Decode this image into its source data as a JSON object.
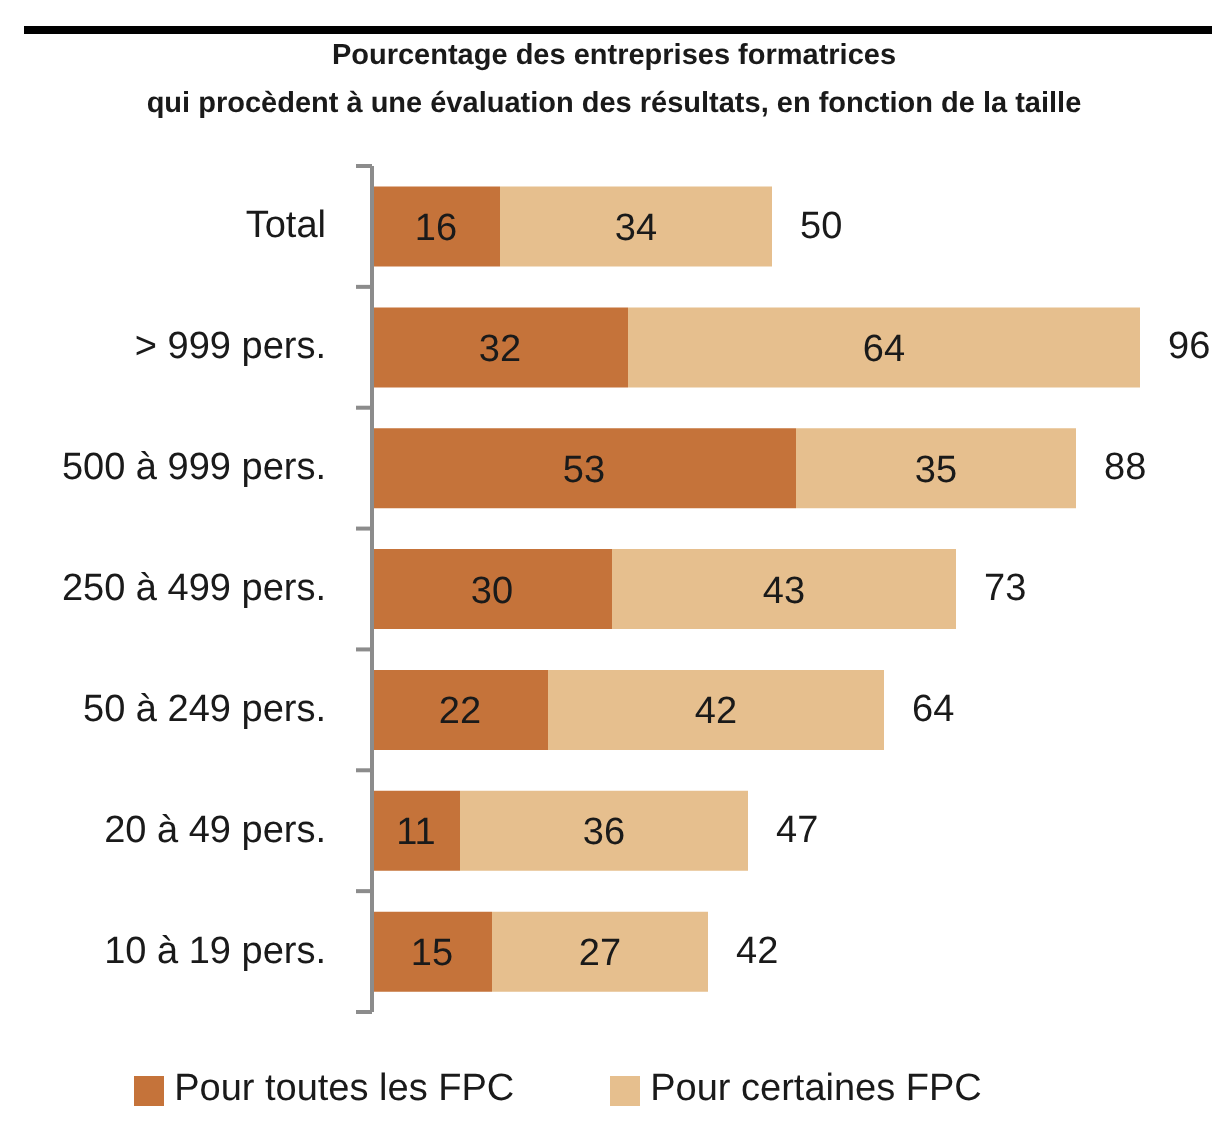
{
  "chart_data": {
    "type": "bar",
    "orientation": "horizontal",
    "stacked": true,
    "title": "Pourcentage des entreprises formatrices\nqui procèdent à une évaluation des résultats, en fonction de la taille",
    "categories": [
      "Total",
      "> 999 pers.",
      "500 à 999 pers.",
      "250 à 499 pers.",
      "50 à 249 pers.",
      "20 à 49 pers.",
      "10 à 19 pers."
    ],
    "series": [
      {
        "name": "Pour toutes les FPC",
        "color": "#c5733a",
        "values": [
          16,
          32,
          53,
          30,
          22,
          11,
          15
        ]
      },
      {
        "name": "Pour certaines FPC",
        "color": "#e6bf8e",
        "values": [
          34,
          64,
          35,
          43,
          42,
          36,
          27
        ]
      }
    ],
    "totals": [
      "50",
      "96",
      "88",
      "73",
      "64",
      "47",
      "42"
    ],
    "data_labels": true,
    "tick_labels": "y",
    "legend": "bottom"
  }
}
